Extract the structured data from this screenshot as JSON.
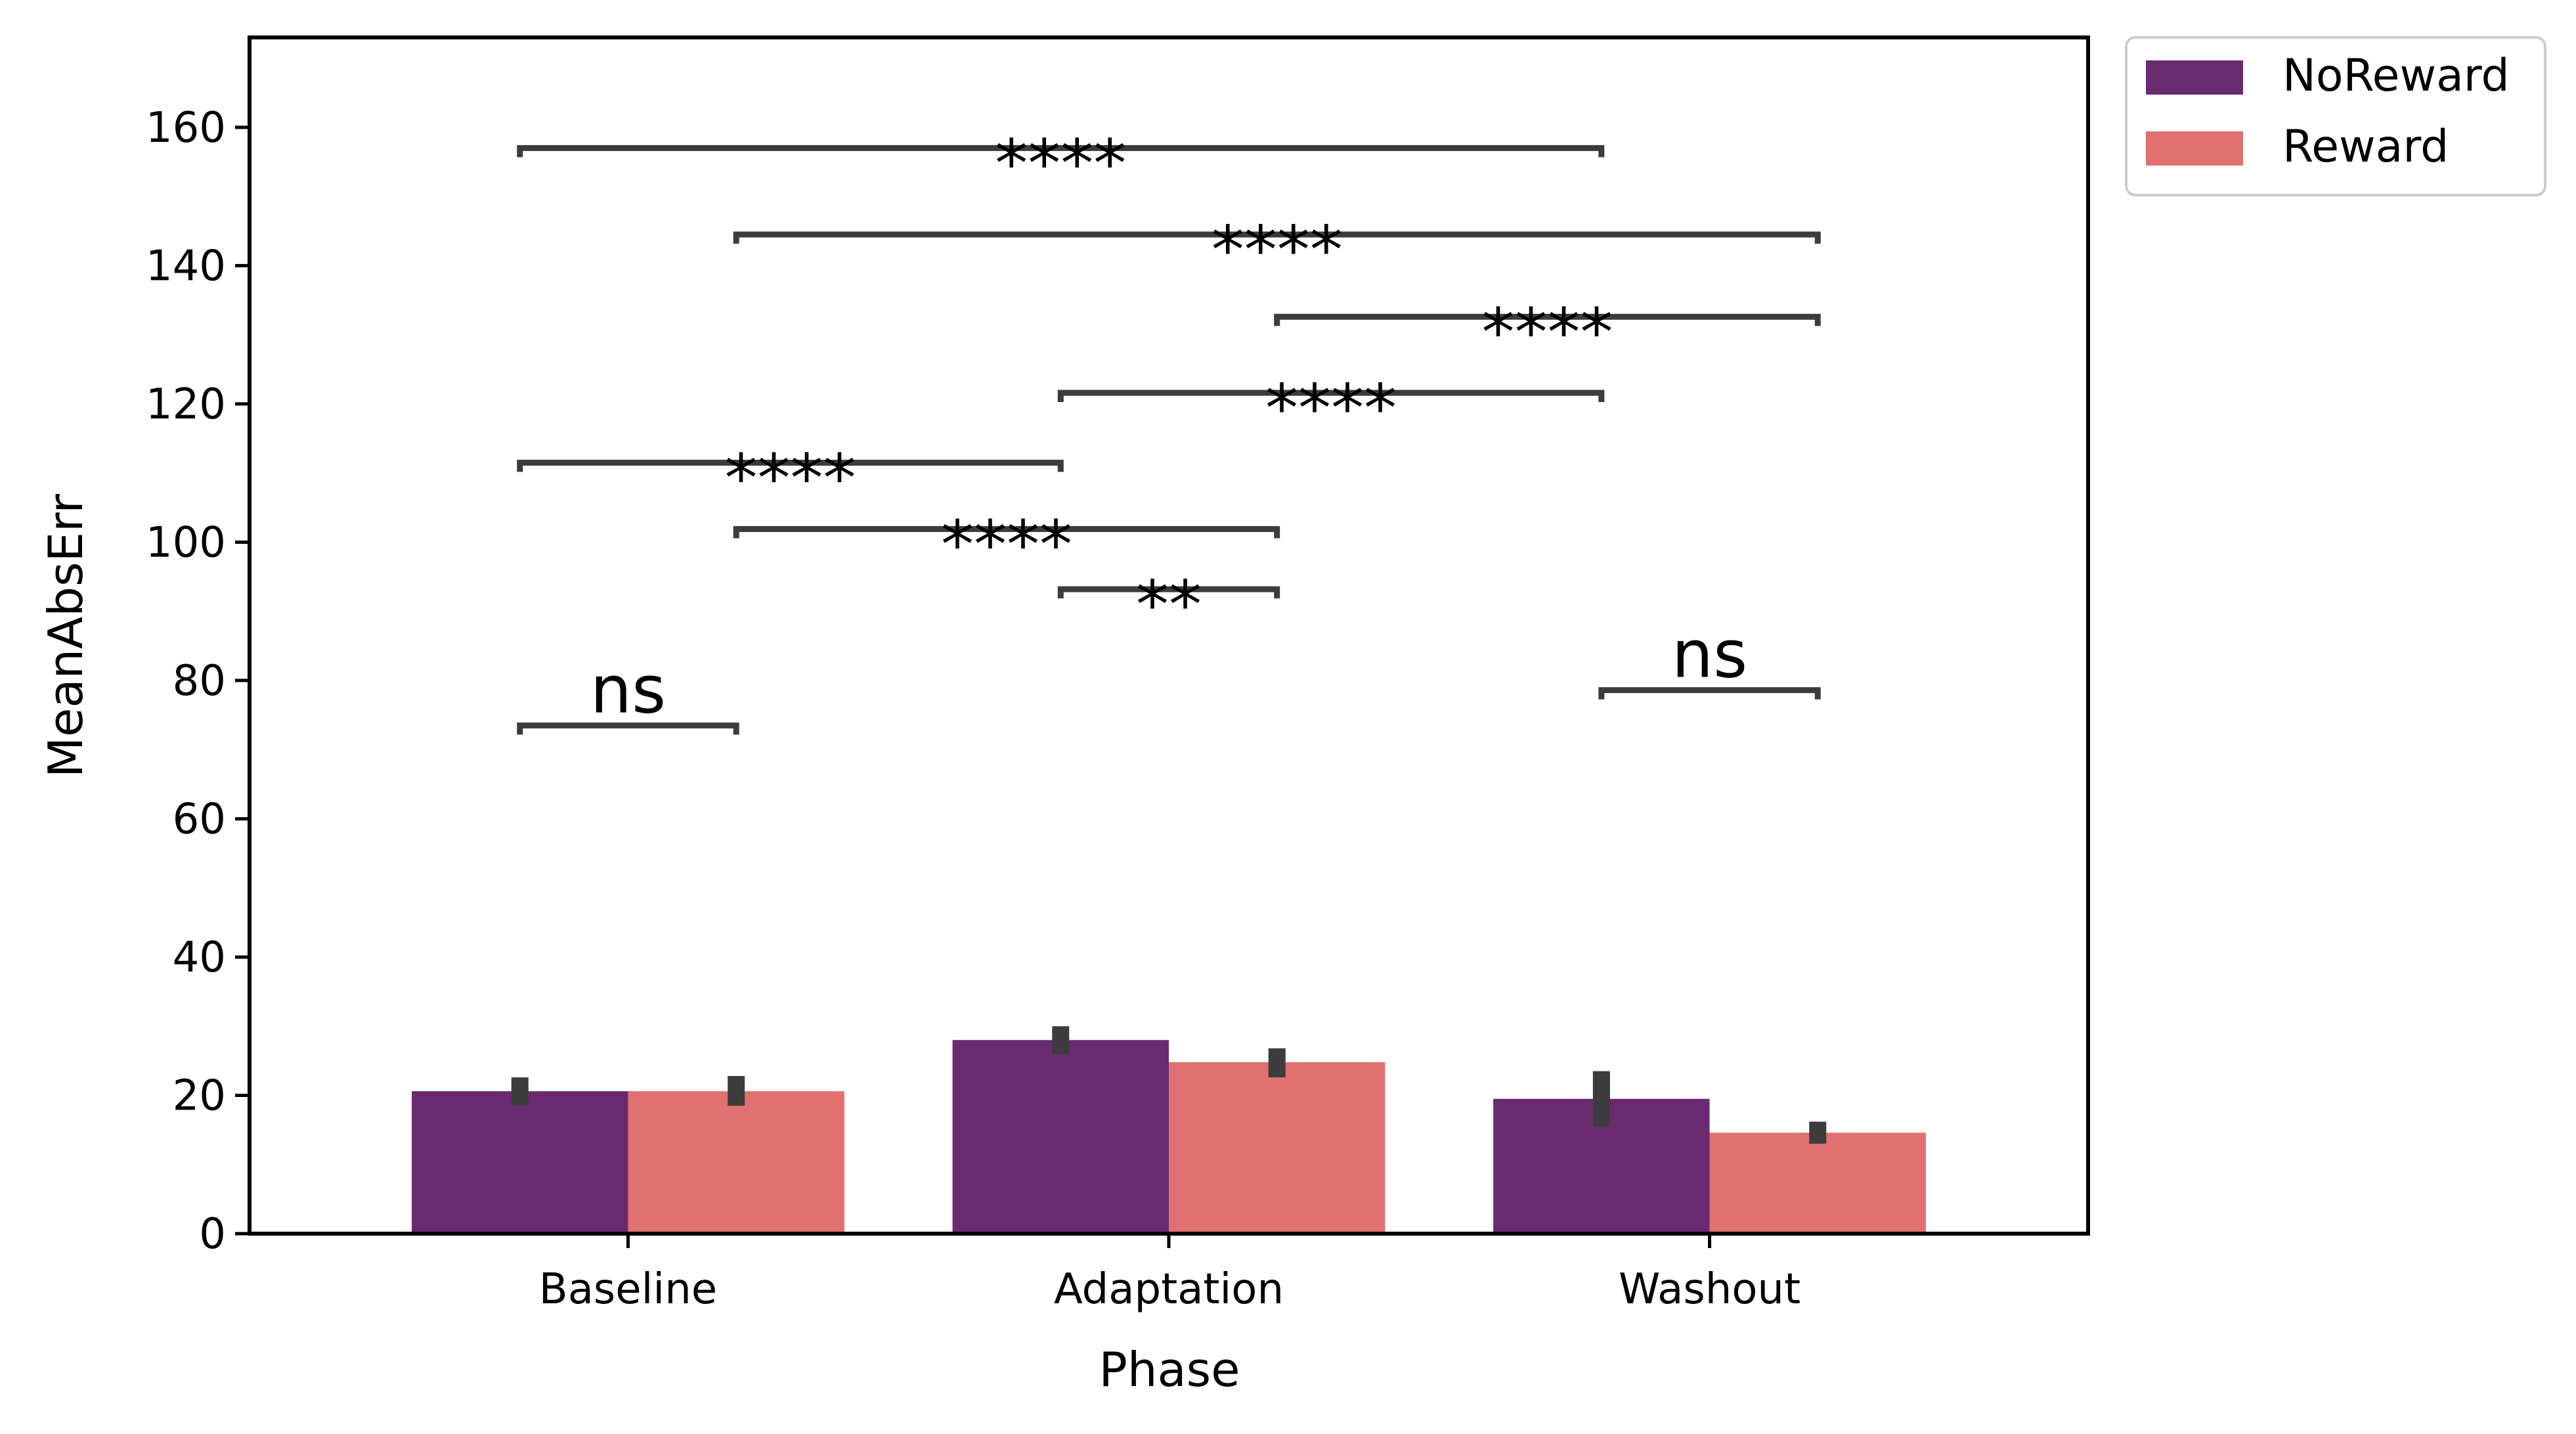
{
  "chart_data": {
    "type": "bar",
    "categories": [
      "Baseline",
      "Adaptation",
      "Washout"
    ],
    "xlabel": "Phase",
    "ylabel": "MeanAbsErr",
    "ylim": [
      0,
      173
    ],
    "yticks": [
      0,
      20,
      40,
      60,
      80,
      100,
      120,
      140,
      160
    ],
    "grid": false,
    "legend_position": "outside-top-right",
    "series": [
      {
        "name": "NoReward",
        "color": "#6a2a70",
        "values": [
          20.6,
          28.0,
          19.5
        ],
        "ci_low": [
          18.5,
          26.0,
          15.5
        ],
        "ci_high": [
          22.6,
          30.0,
          23.5
        ]
      },
      {
        "name": "Reward",
        "color": "#e07170",
        "values": [
          20.6,
          24.8,
          14.6
        ],
        "ci_low": [
          18.5,
          22.6,
          13.0
        ],
        "ci_high": [
          22.8,
          26.8,
          16.2
        ]
      }
    ],
    "significance": [
      {
        "from": [
          0,
          0
        ],
        "to": [
          0,
          1
        ],
        "y": 73.5,
        "label": "ns"
      },
      {
        "from": [
          2,
          0
        ],
        "to": [
          2,
          1
        ],
        "y": 78.6,
        "label": "ns"
      },
      {
        "from": [
          1,
          0
        ],
        "to": [
          1,
          1
        ],
        "y": 93.2,
        "label": "**"
      },
      {
        "from": [
          0,
          1
        ],
        "to": [
          1,
          1
        ],
        "y": 101.9,
        "label": "****"
      },
      {
        "from": [
          0,
          0
        ],
        "to": [
          1,
          0
        ],
        "y": 111.5,
        "label": "****"
      },
      {
        "from": [
          1,
          0
        ],
        "to": [
          2,
          0
        ],
        "y": 121.6,
        "label": "****"
      },
      {
        "from": [
          1,
          1
        ],
        "to": [
          2,
          1
        ],
        "y": 132.6,
        "label": "****"
      },
      {
        "from": [
          0,
          1
        ],
        "to": [
          2,
          1
        ],
        "y": 144.5,
        "label": "****"
      },
      {
        "from": [
          0,
          0
        ],
        "to": [
          2,
          0
        ],
        "y": 157.0,
        "label": "****"
      }
    ]
  }
}
